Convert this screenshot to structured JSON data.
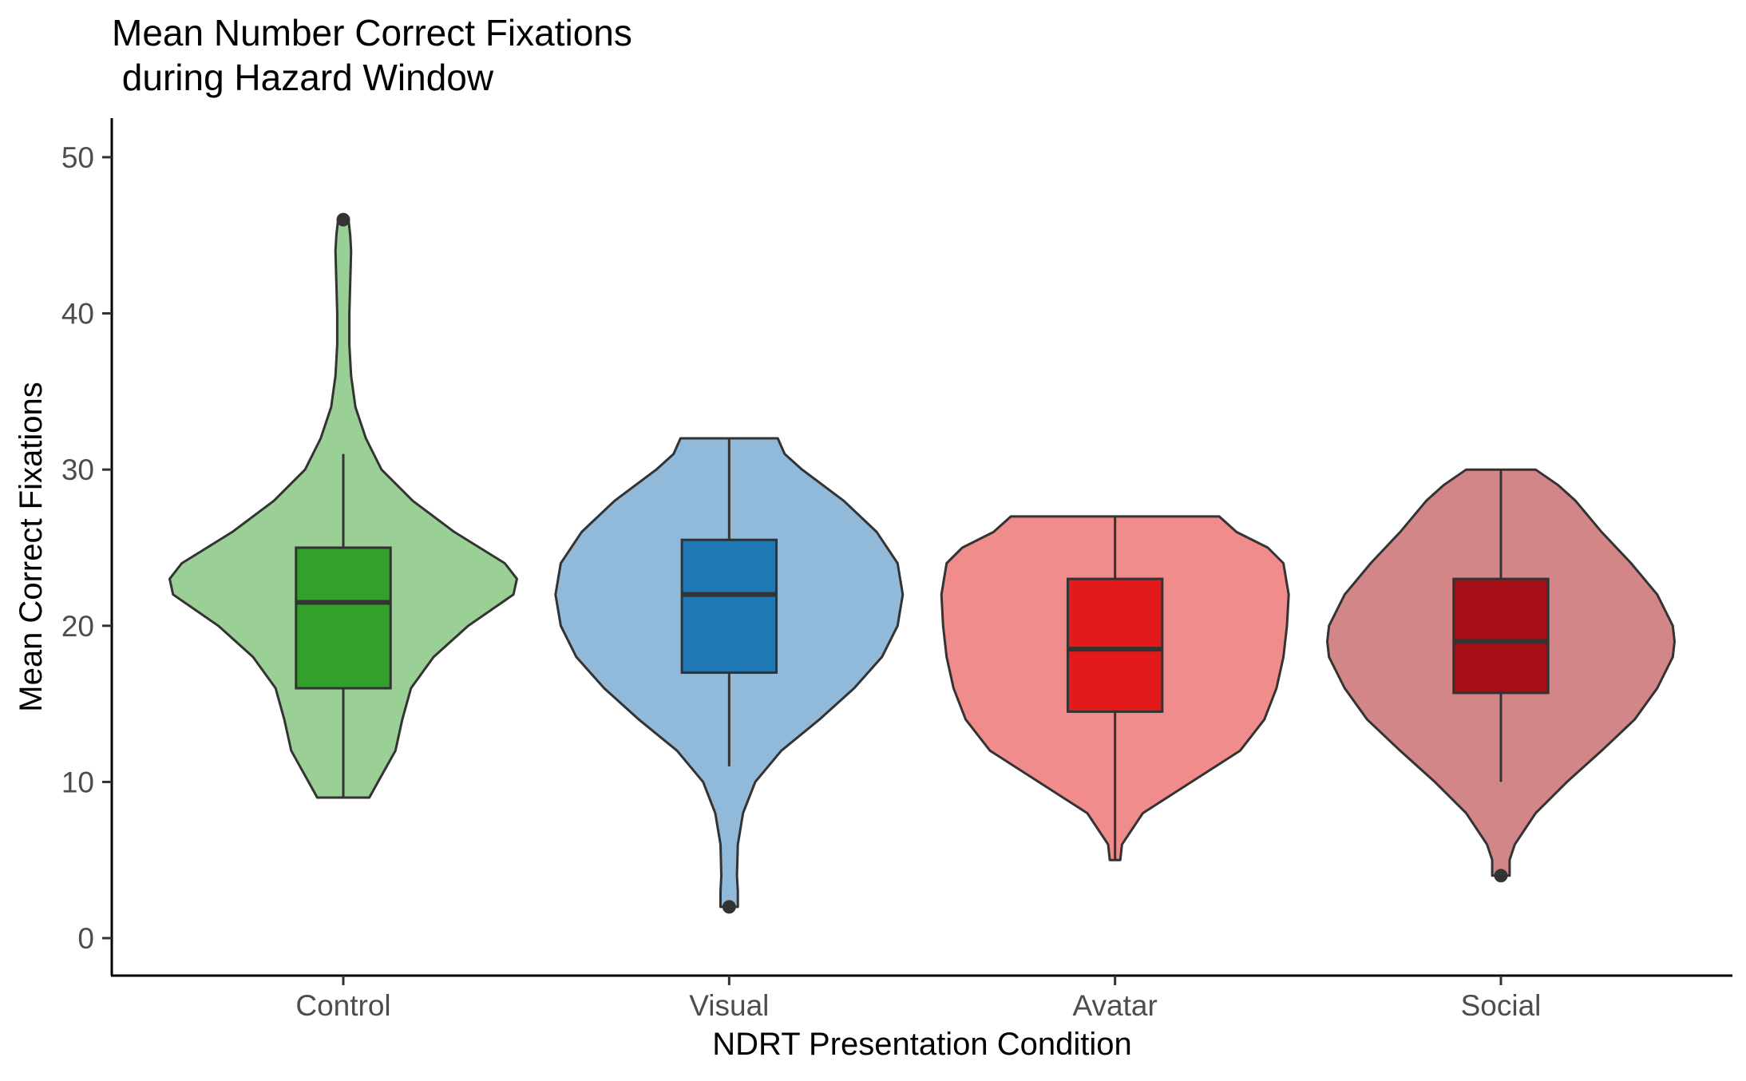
{
  "chart_data": {
    "type": "violin",
    "title_line1": "Mean Number Correct Fixations",
    "title_line2": " during Hazard Window",
    "xlabel": "NDRT Presentation Condition",
    "ylabel": "Mean Correct Fixations",
    "ylim": [
      -2.4,
      52.5
    ],
    "y_ticks": [
      0,
      10,
      20,
      30,
      40,
      50
    ],
    "grid": false,
    "legend": "none",
    "categories": [
      "Control",
      "Visual",
      "Avatar",
      "Social"
    ],
    "groups": [
      {
        "name": "Control",
        "violin_color": "#9acf95",
        "box_color": "#33a02c",
        "box": {
          "whisker_low": 9,
          "q1": 16,
          "median": 21.5,
          "q3": 25,
          "whisker_high": 31
        },
        "outliers": [
          46
        ],
        "density": [
          [
            9,
            0.15
          ],
          [
            10,
            0.2
          ],
          [
            12,
            0.3
          ],
          [
            14,
            0.34
          ],
          [
            16,
            0.39
          ],
          [
            18,
            0.52
          ],
          [
            20,
            0.72
          ],
          [
            22,
            0.98
          ],
          [
            23,
            1.0
          ],
          [
            24,
            0.93
          ],
          [
            26,
            0.64
          ],
          [
            28,
            0.4
          ],
          [
            30,
            0.22
          ],
          [
            32,
            0.13
          ],
          [
            34,
            0.07
          ],
          [
            36,
            0.045
          ],
          [
            38,
            0.035
          ],
          [
            40,
            0.035
          ],
          [
            42,
            0.04
          ],
          [
            44,
            0.045
          ],
          [
            45,
            0.04
          ],
          [
            46,
            0.03
          ]
        ]
      },
      {
        "name": "Visual",
        "violin_color": "#91b9da",
        "box_color": "#1f78b4",
        "box": {
          "whisker_low": 11,
          "q1": 17,
          "median": 22,
          "q3": 25.5,
          "whisker_high": 32
        },
        "outliers": [
          2
        ],
        "density": [
          [
            2,
            0.05
          ],
          [
            3,
            0.05
          ],
          [
            4,
            0.045
          ],
          [
            6,
            0.05
          ],
          [
            8,
            0.08
          ],
          [
            10,
            0.15
          ],
          [
            12,
            0.3
          ],
          [
            14,
            0.52
          ],
          [
            16,
            0.72
          ],
          [
            18,
            0.88
          ],
          [
            20,
            0.97
          ],
          [
            22,
            1.0
          ],
          [
            24,
            0.97
          ],
          [
            26,
            0.85
          ],
          [
            28,
            0.66
          ],
          [
            30,
            0.42
          ],
          [
            31,
            0.32
          ],
          [
            32,
            0.28
          ]
        ]
      },
      {
        "name": "Avatar",
        "violin_color": "#f08c8b",
        "box_color": "#e31a1c",
        "box": {
          "whisker_low": 5,
          "q1": 14.5,
          "median": 18.5,
          "q3": 23,
          "whisker_high": 27
        },
        "outliers": [],
        "density": [
          [
            5,
            0.03
          ],
          [
            6,
            0.04
          ],
          [
            8,
            0.16
          ],
          [
            10,
            0.44
          ],
          [
            12,
            0.72
          ],
          [
            14,
            0.86
          ],
          [
            16,
            0.93
          ],
          [
            18,
            0.97
          ],
          [
            20,
            0.99
          ],
          [
            22,
            1.0
          ],
          [
            24,
            0.97
          ],
          [
            25,
            0.88
          ],
          [
            26,
            0.7
          ],
          [
            27,
            0.6
          ]
        ]
      },
      {
        "name": "Social",
        "violin_color": "#d38688",
        "box_color": "#a50f15",
        "box": {
          "whisker_low": 10,
          "q1": 15.7,
          "median": 19,
          "q3": 23,
          "whisker_high": 30
        },
        "outliers": [
          4
        ],
        "density": [
          [
            4,
            0.05
          ],
          [
            5,
            0.05
          ],
          [
            6,
            0.08
          ],
          [
            8,
            0.2
          ],
          [
            10,
            0.38
          ],
          [
            12,
            0.58
          ],
          [
            14,
            0.77
          ],
          [
            16,
            0.9
          ],
          [
            18,
            0.99
          ],
          [
            19,
            1.0
          ],
          [
            20,
            0.99
          ],
          [
            22,
            0.9
          ],
          [
            24,
            0.75
          ],
          [
            26,
            0.58
          ],
          [
            28,
            0.43
          ],
          [
            29,
            0.33
          ],
          [
            30,
            0.2
          ]
        ]
      }
    ]
  }
}
